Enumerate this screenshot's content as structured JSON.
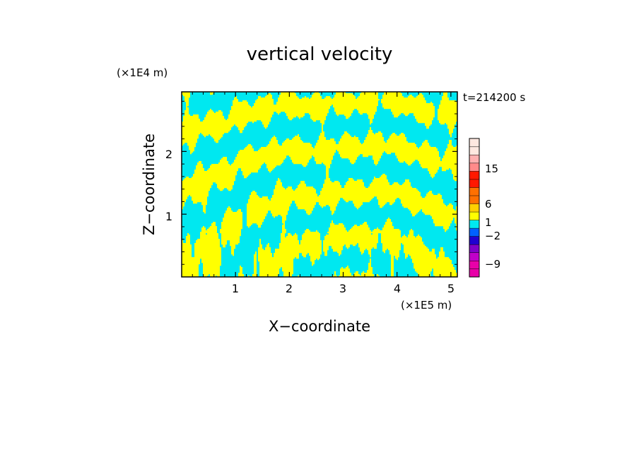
{
  "chart_data": {
    "type": "heatmap",
    "title": "vertical velocity",
    "xlabel": "X−coordinate",
    "ylabel": "Z−coordinate",
    "x_unit": "(×1E5 m)",
    "y_unit": "(×1E4 m)",
    "time_label": "t=214200 s",
    "xlim": [
      0,
      5.12
    ],
    "ylim": [
      0,
      2.95
    ],
    "x_ticks": [
      1,
      2,
      3,
      4,
      5
    ],
    "y_ticks": [
      1,
      2
    ],
    "x_tick_labels": [
      "1",
      "2",
      "3",
      "4",
      "5"
    ],
    "y_tick_labels": [
      "1",
      "2"
    ],
    "field_colors": {
      "positive": "#ffff00",
      "negative": "#00e8f0"
    },
    "colorbar": {
      "bands": [
        {
          "color": "#e800a8"
        },
        {
          "color": "#e800a8"
        },
        {
          "color": "#c000c8"
        },
        {
          "color": "#8000c8"
        },
        {
          "color": "#2000d0"
        },
        {
          "color": "#0060ff"
        },
        {
          "color": "#00e8f0"
        },
        {
          "color": "#ffff00"
        },
        {
          "color": "#ffd000"
        },
        {
          "color": "#ff7000"
        },
        {
          "color": "#ff7000"
        },
        {
          "color": "#ff1800"
        },
        {
          "color": "#ff1800"
        },
        {
          "color": "#ff8a8a"
        },
        {
          "color": "#ffb0b0"
        },
        {
          "color": "#ffe8e0"
        },
        {
          "color": "#ffe8e0"
        }
      ],
      "labels": [
        "15",
        "6",
        "1",
        "−2",
        "−9"
      ]
    }
  }
}
